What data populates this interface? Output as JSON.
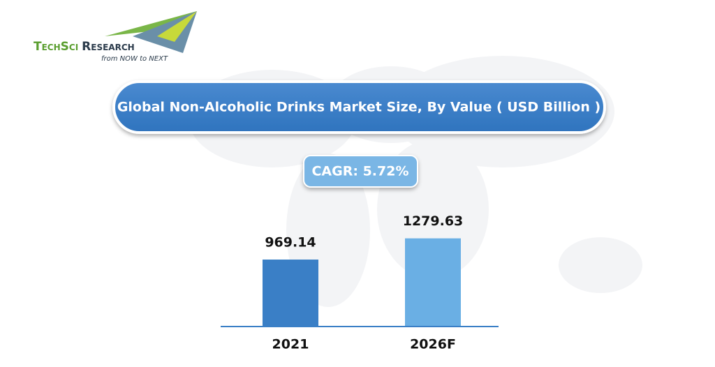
{
  "logo": {
    "brand_first": "TechSci",
    "brand_second": "Research",
    "tagline": "from NOW to NEXT"
  },
  "chart_data": {
    "type": "bar",
    "title": "Global Non-Alcoholic Drinks Market Size, By Value ( USD Billion )",
    "annotation": "CAGR: 5.72%",
    "categories": [
      "2021",
      "2026F"
    ],
    "values": [
      969.14,
      1279.63
    ],
    "colors": [
      "#3a7fc6",
      "#6aafe4"
    ],
    "ylim": [
      0,
      1500
    ]
  }
}
